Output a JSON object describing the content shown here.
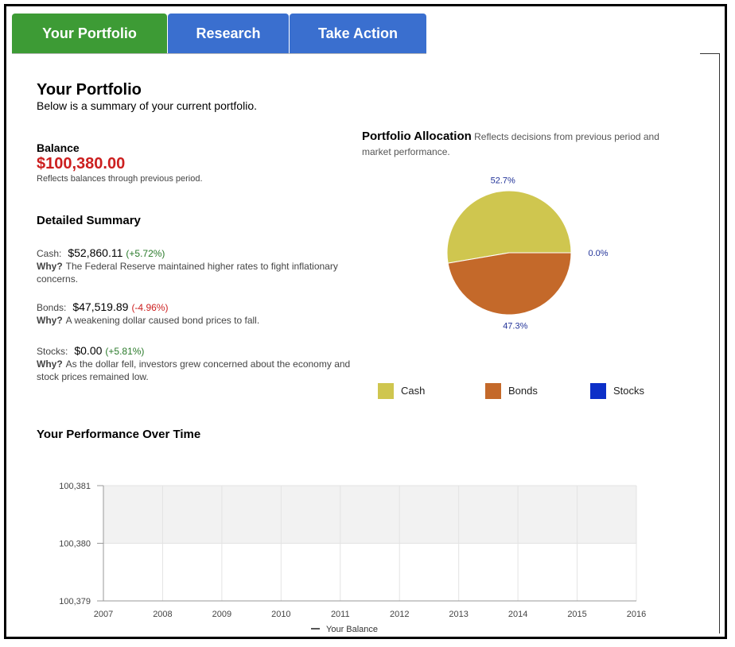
{
  "tabs": [
    "Your Portfolio",
    "Research",
    "Take Action"
  ],
  "header": {
    "title": "Your Portfolio",
    "subtitle": "Below is a summary of your current portfolio."
  },
  "balance": {
    "label": "Balance",
    "amount": "$100,380.00",
    "note": "Reflects balances through previous period."
  },
  "summary": {
    "title": "Detailed Summary",
    "items": [
      {
        "label": "Cash:",
        "amount": "$52,860.11",
        "change": "(+5.72%)",
        "why": "Why?",
        "reason": "The Federal Reserve maintained higher rates to fight inflationary concerns."
      },
      {
        "label": "Bonds:",
        "amount": "$47,519.89",
        "change": "(-4.96%)",
        "why": "Why?",
        "reason": "A weakening dollar caused bond prices to fall."
      },
      {
        "label": "Stocks:",
        "amount": "$0.00",
        "change": "(+5.81%)",
        "why": "Why?",
        "reason": "As the dollar fell, investors grew concerned about the economy and stock prices remained low."
      }
    ]
  },
  "allocation": {
    "title": "Portfolio Allocation",
    "description": "Reflects decisions from previous period and market performance.",
    "chart_data": {
      "type": "pie",
      "categories": [
        "Cash",
        "Bonds",
        "Stocks"
      ],
      "values": [
        52.7,
        47.3,
        0.0
      ],
      "value_labels": [
        "52.7%",
        "47.3%",
        "0.0%"
      ],
      "colors": [
        "#cfc64f",
        "#c4692a",
        "#0c2fc8"
      ]
    }
  },
  "performance": {
    "title": "Your Performance Over Time",
    "chart_data": {
      "type": "line",
      "x": [
        2007,
        2008,
        2009,
        2010,
        2011,
        2012,
        2013,
        2014,
        2015,
        2016
      ],
      "series": [
        {
          "name": "Your Balance",
          "color": "#555555",
          "values": [
            null,
            null,
            null,
            null,
            null,
            null,
            null,
            null,
            null,
            null
          ]
        }
      ],
      "xlim": [
        2007,
        2016
      ],
      "xticks": [
        2007,
        2008,
        2009,
        2010,
        2011,
        2012,
        2013,
        2014,
        2015,
        2016
      ],
      "ylim": [
        100379,
        100381
      ],
      "yticks": [
        {
          "value": 100379,
          "label": "100,379"
        },
        {
          "value": 100380,
          "label": "100,380"
        },
        {
          "value": 100381,
          "label": "100,381"
        }
      ],
      "grid": true
    }
  }
}
